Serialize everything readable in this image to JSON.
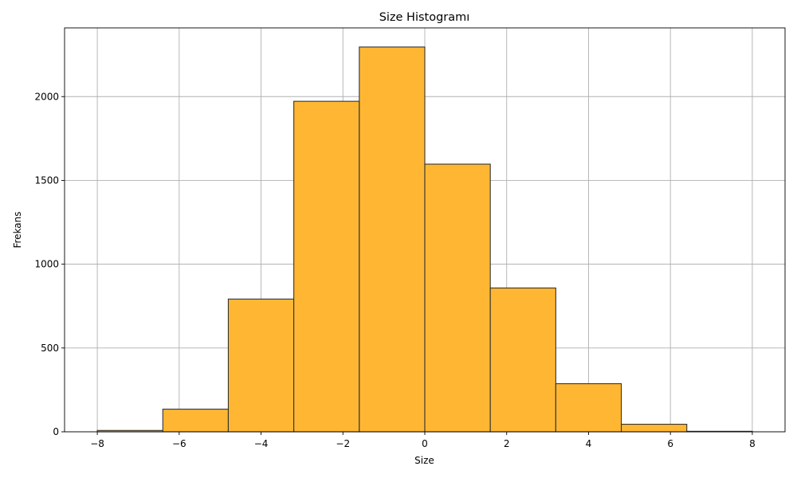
{
  "chart_data": {
    "type": "bar",
    "title": "Size Histogramı",
    "xlabel": "Size",
    "ylabel": "Frekans",
    "bin_edges": [
      -8.0,
      -6.4,
      -4.8,
      -3.2,
      -1.6,
      0.0,
      1.6,
      3.2,
      4.8,
      6.4,
      8.0
    ],
    "values": [
      8,
      135,
      792,
      1972,
      2296,
      1597,
      858,
      287,
      45,
      3
    ],
    "xlim": [
      -8.8,
      8.8
    ],
    "ylim": [
      0,
      2410
    ],
    "xticks": [
      -8,
      -6,
      -4,
      -2,
      0,
      2,
      4,
      6,
      8
    ],
    "xtick_labels": [
      "−8",
      "−6",
      "−4",
      "−2",
      "0",
      "2",
      "4",
      "6",
      "8"
    ],
    "yticks": [
      0,
      500,
      1000,
      1500,
      2000
    ],
    "ytick_labels": [
      "0",
      "500",
      "1000",
      "1500",
      "2000"
    ],
    "grid": true,
    "bar_color": "#FFB733",
    "bar_edge_color": "#333333"
  }
}
